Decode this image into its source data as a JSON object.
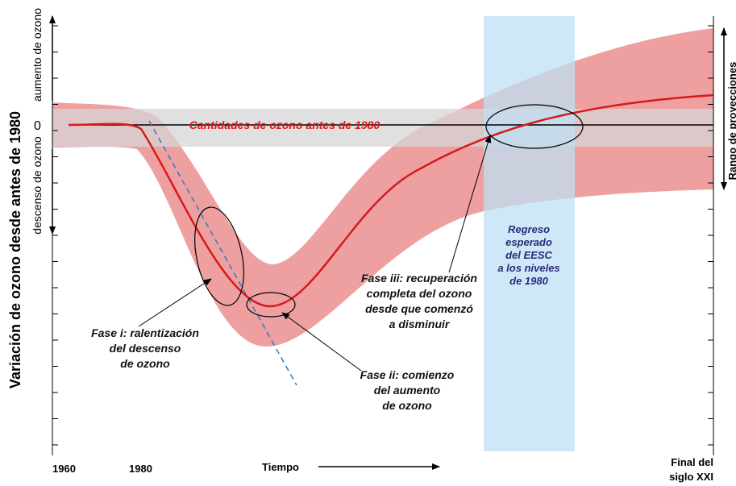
{
  "y_axis_title": "Variación de ozono desde antes de 1980",
  "y_upper_label": "aumento de ozono",
  "y_lower_label": "descenso de ozono",
  "zero_label": "0",
  "x_labels": [
    "1960",
    "1980"
  ],
  "x_axis_title": "Tiempo",
  "x_end_label": [
    "Final del",
    "siglo XXI"
  ],
  "right_label": "Rango de proyecciones",
  "baseline_label": "Cantidades de ozono antes de 1980",
  "eesc_label": [
    "Regreso",
    "esperado",
    "del EESC",
    "a los niveles",
    "de 1980"
  ],
  "phases": [
    {
      "lines": [
        "Fase i: ralentización",
        "del descenso",
        "de ozono"
      ]
    },
    {
      "lines": [
        "Fase ii: comienzo",
        "del aumento",
        "de ozono"
      ]
    },
    {
      "lines": [
        "Fase iii: recuperación",
        "completa del ozono",
        "desde que comenzó",
        "a disminuir"
      ]
    }
  ]
}
